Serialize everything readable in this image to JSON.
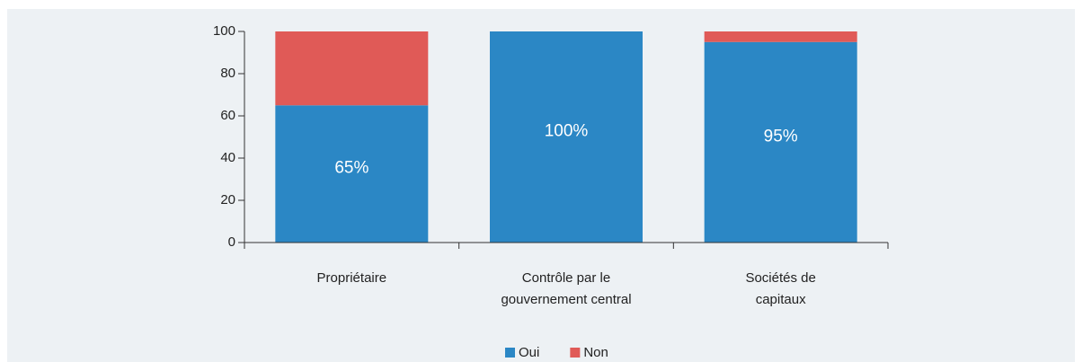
{
  "chart_data": {
    "type": "stacked_bar",
    "categories": [
      "Propriétaire",
      "Contrôle par le\ngouvernement central",
      "Sociétés de\ncapitaux"
    ],
    "series": [
      {
        "name": "Oui",
        "color": "#2b87c5",
        "values": [
          65,
          100,
          95
        ],
        "value_labels": [
          "65%",
          "100%",
          "95%"
        ]
      },
      {
        "name": "Non",
        "color": "#e05a57",
        "values": [
          35,
          0,
          5
        ]
      }
    ],
    "ylim": [
      0,
      100
    ],
    "yticks": [
      0,
      20,
      40,
      60,
      80,
      100
    ],
    "legend": "bottom"
  }
}
